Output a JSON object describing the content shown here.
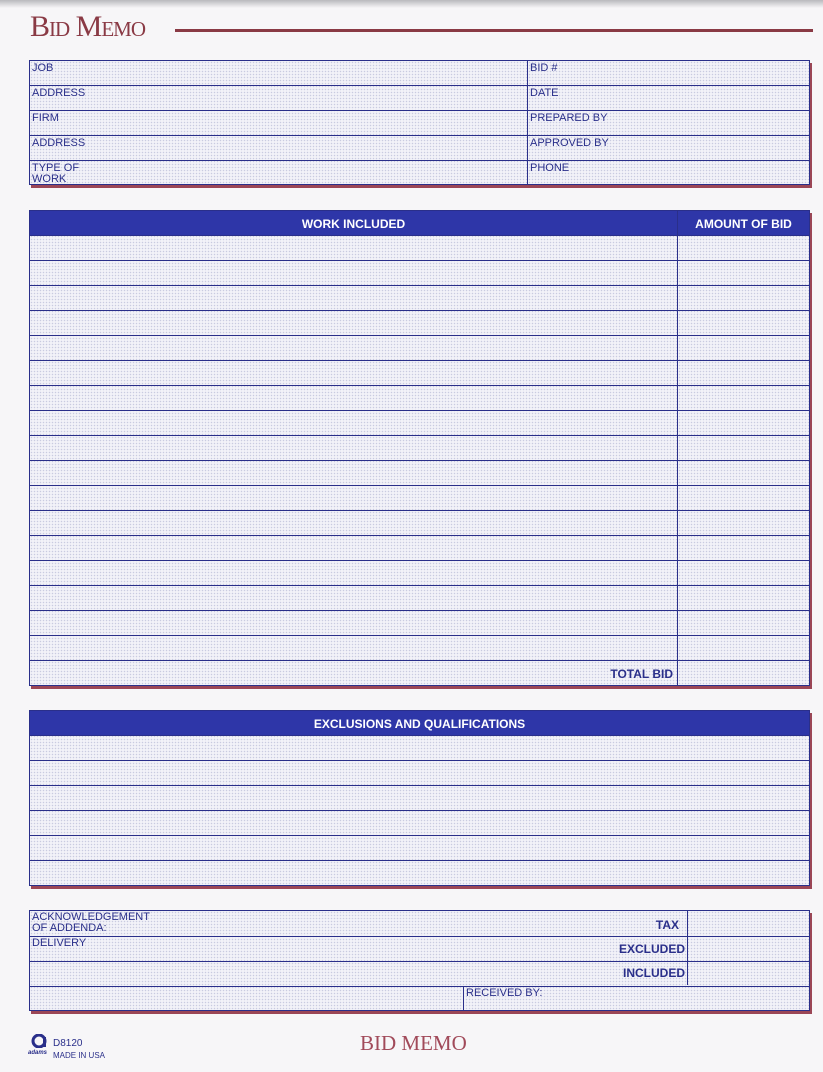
{
  "header": {
    "title": "Bid Memo"
  },
  "info": {
    "left": [
      "JOB",
      "ADDRESS",
      "FIRM",
      "ADDRESS",
      "TYPE OF\nWORK"
    ],
    "right": [
      "BID #",
      "DATE",
      "PREPARED BY",
      "APPROVED BY",
      "PHONE"
    ]
  },
  "work": {
    "col1": "WORK INCLUDED",
    "col2": "AMOUNT OF BID",
    "total": "TOTAL BID",
    "row_count": 17
  },
  "exclusions": {
    "title": "EXCLUSIONS AND QUALIFICATIONS",
    "row_count": 6
  },
  "bottom": {
    "ack": "ACKNOWLEDGEMENT\nOF ADDENDA:",
    "delivery": "DELIVERY",
    "tax": "TAX",
    "excluded": "EXCLUDED",
    "included": "INCLUDED",
    "received": "RECEIVED BY:"
  },
  "footer": {
    "code": "D8120",
    "made": "MADE IN USA",
    "brand": "adams",
    "title": "BID MEMO"
  },
  "colors": {
    "blue": "#2e36a8",
    "maroon": "#8a3a45"
  }
}
